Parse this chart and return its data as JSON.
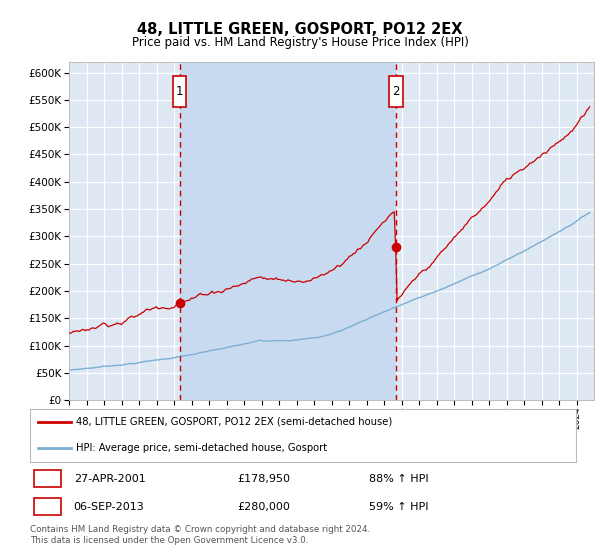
{
  "title": "48, LITTLE GREEN, GOSPORT, PO12 2EX",
  "subtitle": "Price paid vs. HM Land Registry's House Price Index (HPI)",
  "legend_line1": "48, LITTLE GREEN, GOSPORT, PO12 2EX (semi-detached house)",
  "legend_line2": "HPI: Average price, semi-detached house, Gosport",
  "footer": "Contains HM Land Registry data © Crown copyright and database right 2024.\nThis data is licensed under the Open Government Licence v3.0.",
  "transaction1": {
    "label": "1",
    "date": "27-APR-2001",
    "price": 178950,
    "pct": "88% ↑ HPI",
    "year": 2001.32
  },
  "transaction2": {
    "label": "2",
    "date": "06-SEP-2013",
    "price": 280000,
    "pct": "59% ↑ HPI",
    "year": 2013.68
  },
  "ylim": [
    0,
    620000
  ],
  "yticks": [
    0,
    50000,
    100000,
    150000,
    200000,
    250000,
    300000,
    350000,
    400000,
    450000,
    500000,
    550000,
    600000
  ],
  "red_color": "#cc0000",
  "blue_color": "#7bafd4",
  "bg_color": "#dde8f3",
  "highlight_color": "#c8daf0",
  "grid_color": "#ffffff",
  "marker_box_color": "#cc0000"
}
